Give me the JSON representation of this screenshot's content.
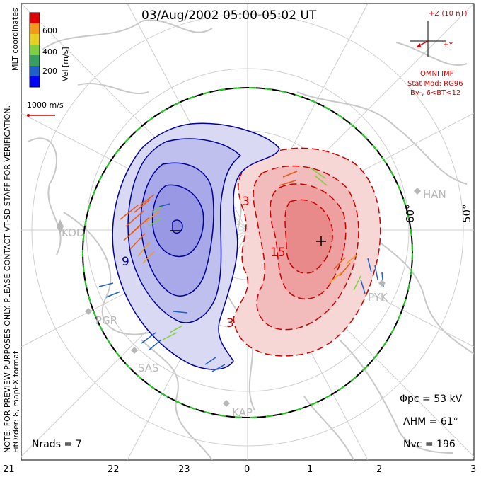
{
  "title": "03/Aug/2002 05:00-05:02 UT",
  "coords_label": "MLT coordinates",
  "colorbar": {
    "label": "Vel [m/s]",
    "ticks": [
      "600",
      "400",
      "200"
    ],
    "colors": [
      "#0000ff",
      "#1e5fc8",
      "#37a060",
      "#7ed040",
      "#e8d020",
      "#f39a1a",
      "#e85a14",
      "#e00000"
    ]
  },
  "scale_vector": "1000 m/s",
  "side_note": "NOTE: FOR PREVIEW PURPOSES ONLY. PLEASE CONTACT VT-SD STAFF FOR VERIFICATION.",
  "fit_order": "FitOrder: 8, mapEX format",
  "imf": {
    "z_label": "+Z (10 nT)",
    "y_label": "+Y",
    "omni": "OMNI IMF",
    "model": "Stat Mod: RG96",
    "condition": "By-, 6<BT<12"
  },
  "stations": [
    "KOD",
    "PGR",
    "SAS",
    "KAP",
    "PYK",
    "HAN"
  ],
  "latitude_labels": [
    "60°",
    "50°"
  ],
  "contour_labels": [
    "3",
    "9",
    "15",
    "3"
  ],
  "stats": {
    "phi_pc": "Φpc = 53 kV",
    "lambda_hm": "ΛHM = 61°",
    "n_vc": "Nvc = 196",
    "n_rads": "Nrads = 7"
  },
  "mlt_ticks": [
    "21",
    "22",
    "23",
    "0",
    "1",
    "2",
    "3"
  ],
  "colors": {
    "positive_cell": "#e84a4a",
    "negative_cell": "#6a6ae8",
    "contour_red": "#cc0000",
    "contour_blue": "#00009a",
    "hm_boundary": "#22cc22"
  }
}
